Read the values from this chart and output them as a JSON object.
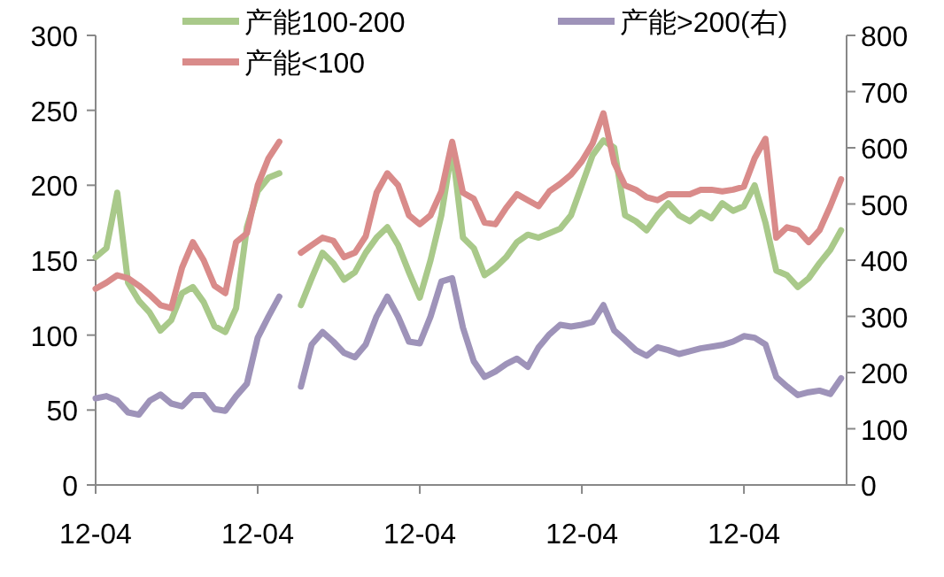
{
  "chart_data": {
    "type": "line",
    "legend": "top",
    "grid": false,
    "marker": "none",
    "line_style": "solid",
    "categories": [
      "12-04",
      null,
      null,
      null,
      null,
      null,
      null,
      null,
      null,
      null,
      null,
      null,
      null,
      null,
      null,
      "12-04",
      null,
      null,
      null,
      null,
      null,
      null,
      null,
      null,
      null,
      null,
      null,
      null,
      null,
      null,
      "12-04",
      null,
      null,
      null,
      null,
      null,
      null,
      null,
      null,
      null,
      null,
      null,
      null,
      null,
      null,
      "12-04",
      null,
      null,
      null,
      null,
      null,
      null,
      null,
      null,
      null,
      null,
      null,
      null,
      null,
      null,
      "12-04",
      null,
      null,
      null,
      null,
      null,
      null,
      null,
      null,
      null
    ],
    "ylim": [
      0,
      300
    ],
    "yticks": [
      0,
      50,
      100,
      150,
      200,
      250,
      300
    ],
    "y2lim": [
      0,
      800
    ],
    "y2ticks": [
      0,
      100,
      200,
      300,
      400,
      500,
      600,
      700,
      800
    ],
    "series": [
      {
        "name": "产能100-200",
        "color": "#a9c98a",
        "values": [
          152,
          158,
          195,
          135,
          123,
          115,
          103,
          110,
          128,
          132,
          122,
          106,
          102,
          118,
          172,
          196,
          205,
          208,
          null,
          120,
          138,
          155,
          148,
          137,
          142,
          155,
          165,
          172,
          160,
          142,
          125,
          150,
          180,
          225,
          165,
          158,
          140,
          145,
          152,
          162,
          167,
          165,
          168,
          171,
          180,
          200,
          220,
          230,
          225,
          180,
          176,
          170,
          180,
          188,
          180,
          176,
          182,
          178,
          188,
          183,
          186,
          200,
          175,
          143,
          140,
          132,
          138,
          148,
          157,
          170
        ]
      },
      {
        "name": "产能<100",
        "color": "#d98b8a",
        "values": [
          131,
          135,
          140,
          138,
          133,
          127,
          120,
          118,
          145,
          162,
          150,
          133,
          128,
          162,
          168,
          200,
          218,
          229,
          null,
          155,
          160,
          165,
          163,
          152,
          155,
          166,
          195,
          208,
          200,
          180,
          174,
          180,
          196,
          229,
          195,
          191,
          175,
          174,
          185,
          194,
          190,
          186,
          196,
          201,
          207,
          216,
          228,
          248,
          215,
          200,
          197,
          192,
          190,
          194,
          194,
          194,
          197,
          197,
          196,
          197,
          199,
          218,
          231,
          165,
          172,
          170,
          162,
          170,
          186,
          204
        ]
      },
      {
        "name": "产能>200(右)",
        "color": "#9e93b9",
        "axis": "y2",
        "values": [
          154,
          158,
          150,
          129,
          125,
          150,
          161,
          145,
          140,
          160,
          160,
          135,
          132,
          158,
          180,
          262,
          300,
          335,
          null,
          175,
          250,
          272,
          255,
          235,
          227,
          250,
          300,
          335,
          300,
          255,
          252,
          300,
          362,
          368,
          280,
          220,
          192,
          202,
          215,
          225,
          210,
          245,
          268,
          285,
          282,
          285,
          290,
          320,
          275,
          258,
          240,
          230,
          245,
          240,
          233,
          238,
          243,
          246,
          249,
          255,
          265,
          262,
          250,
          192,
          175,
          160,
          165,
          168,
          162,
          190
        ]
      }
    ]
  }
}
